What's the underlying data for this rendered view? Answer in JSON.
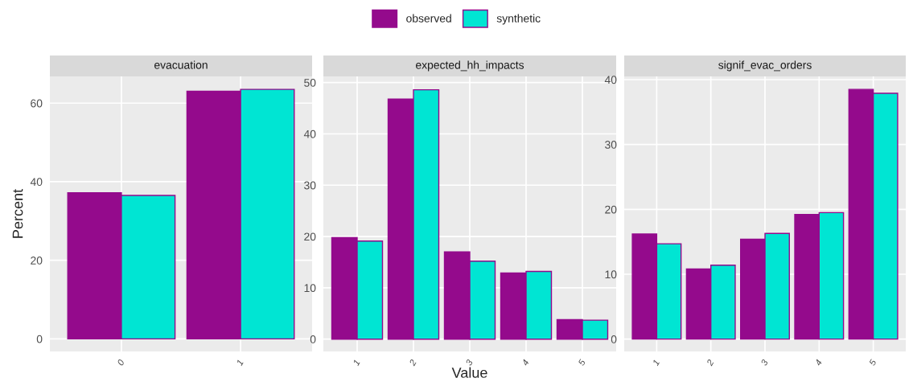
{
  "chart_data": [
    {
      "type": "bar",
      "title": "evacuation",
      "ylabel": "Percent",
      "categories": [
        "0",
        "1"
      ],
      "series": [
        {
          "name": "observed",
          "color": "#940a8c",
          "values": [
            37.2,
            63.0
          ]
        },
        {
          "name": "synthetic",
          "color": "#00e5d3",
          "values": [
            36.5,
            63.5
          ]
        }
      ],
      "ylim": [
        -3.2,
        66.8
      ],
      "yticks": [
        0,
        20,
        40,
        60
      ],
      "grid": true,
      "legend": "top"
    },
    {
      "type": "bar",
      "title": "expected_hh_impacts",
      "xlabel": "Value",
      "categories": [
        "1",
        "2",
        "3",
        "4",
        "5"
      ],
      "series": [
        {
          "color": "#940a8c",
          "values": [
            19.8,
            46.8,
            17.0,
            12.9,
            3.8
          ]
        },
        {
          "color": "#00e5d3",
          "values": [
            19.1,
            48.6,
            15.2,
            13.2,
            3.7
          ]
        }
      ],
      "ylim": [
        -2.4,
        51.2
      ],
      "yticks": [
        0,
        10,
        20,
        30,
        40,
        50
      ],
      "grid": true
    },
    {
      "type": "bar",
      "title": "signif_evac_orders",
      "categories": [
        "1",
        "2",
        "3",
        "4",
        "5"
      ],
      "series": [
        {
          "color": "#940a8c",
          "values": [
            16.2,
            10.8,
            15.4,
            19.2,
            38.5
          ]
        },
        {
          "color": "#00e5d3",
          "values": [
            14.7,
            11.4,
            16.3,
            19.5,
            37.9
          ]
        }
      ],
      "ylim": [
        -1.9,
        40.5
      ],
      "yticks": [
        0,
        10,
        20,
        30,
        40
      ],
      "grid": true
    }
  ]
}
